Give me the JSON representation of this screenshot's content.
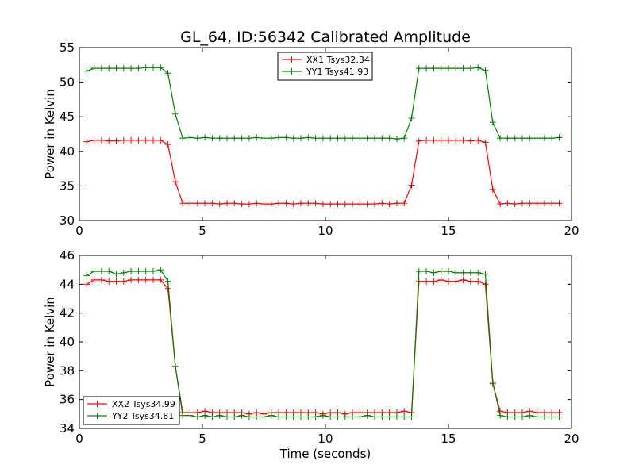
{
  "chart_data": [
    {
      "type": "line",
      "title": "GL_64, ID:56342 Calibrated Amplitude",
      "xlabel": "",
      "ylabel": "Power in Kelvin",
      "xlim": [
        0,
        20
      ],
      "ylim": [
        30,
        55
      ],
      "xticks": [
        0,
        5,
        10,
        15,
        20
      ],
      "yticks": [
        30,
        35,
        40,
        45,
        50,
        55
      ],
      "grid": false,
      "legend_position": "top-center",
      "x": [
        0.3,
        0.6,
        0.9,
        1.2,
        1.5,
        1.8,
        2.1,
        2.4,
        2.7,
        3.0,
        3.3,
        3.6,
        3.9,
        4.2,
        4.5,
        4.8,
        5.1,
        5.4,
        5.7,
        6.0,
        6.3,
        6.6,
        6.9,
        7.2,
        7.5,
        7.8,
        8.1,
        8.4,
        8.7,
        9.0,
        9.3,
        9.6,
        9.9,
        10.2,
        10.5,
        10.8,
        11.1,
        11.4,
        11.7,
        12.0,
        12.3,
        12.6,
        12.9,
        13.2,
        13.5,
        13.8,
        14.1,
        14.4,
        14.7,
        15.0,
        15.3,
        15.6,
        15.9,
        16.2,
        16.5,
        16.8,
        17.1,
        17.4,
        17.7,
        18.0,
        18.3,
        18.6,
        18.9,
        19.2,
        19.5
      ],
      "series": [
        {
          "name": "XX1 Tsys32.34",
          "color": "#ff0000",
          "values": [
            41.4,
            41.6,
            41.6,
            41.5,
            41.5,
            41.6,
            41.6,
            41.6,
            41.6,
            41.6,
            41.6,
            41.0,
            35.6,
            32.5,
            32.5,
            32.5,
            32.5,
            32.5,
            32.4,
            32.5,
            32.5,
            32.4,
            32.4,
            32.5,
            32.4,
            32.4,
            32.5,
            32.5,
            32.4,
            32.5,
            32.5,
            32.5,
            32.4,
            32.4,
            32.4,
            32.4,
            32.4,
            32.4,
            32.4,
            32.4,
            32.5,
            32.4,
            32.5,
            32.5,
            35.1,
            41.5,
            41.6,
            41.6,
            41.6,
            41.6,
            41.6,
            41.6,
            41.5,
            41.6,
            41.3,
            34.5,
            32.4,
            32.5,
            32.4,
            32.5,
            32.5,
            32.5,
            32.5,
            32.5,
            32.5
          ]
        },
        {
          "name": "YY1 Tsys41.93",
          "color": "#008000",
          "values": [
            51.6,
            52.0,
            52.0,
            52.0,
            52.0,
            52.0,
            52.0,
            52.0,
            52.1,
            52.1,
            52.1,
            51.3,
            45.4,
            41.9,
            42.0,
            41.9,
            42.0,
            41.9,
            41.9,
            41.9,
            41.9,
            41.9,
            41.9,
            42.0,
            41.9,
            41.9,
            42.0,
            42.0,
            41.9,
            41.9,
            42.0,
            41.9,
            41.9,
            41.9,
            41.9,
            41.9,
            41.9,
            41.9,
            41.9,
            41.9,
            41.9,
            41.9,
            41.8,
            41.9,
            44.8,
            52.0,
            52.0,
            52.0,
            52.0,
            52.0,
            52.0,
            52.0,
            52.0,
            52.1,
            51.7,
            44.2,
            41.9,
            41.9,
            41.9,
            41.9,
            41.9,
            41.9,
            41.9,
            41.9,
            42.0
          ]
        }
      ]
    },
    {
      "type": "line",
      "title": "",
      "xlabel": "Time (seconds)",
      "ylabel": "Power in Kelvin",
      "xlim": [
        0,
        20
      ],
      "ylim": [
        34,
        46
      ],
      "xticks": [
        0,
        5,
        10,
        15,
        20
      ],
      "yticks": [
        34,
        36,
        38,
        40,
        42,
        44,
        46
      ],
      "grid": false,
      "legend_position": "bottom-left",
      "x": [
        0.3,
        0.6,
        0.9,
        1.2,
        1.5,
        1.8,
        2.1,
        2.4,
        2.7,
        3.0,
        3.3,
        3.6,
        3.9,
        4.2,
        4.5,
        4.8,
        5.1,
        5.4,
        5.7,
        6.0,
        6.3,
        6.6,
        6.9,
        7.2,
        7.5,
        7.8,
        8.1,
        8.4,
        8.7,
        9.0,
        9.3,
        9.6,
        9.9,
        10.2,
        10.5,
        10.8,
        11.1,
        11.4,
        11.7,
        12.0,
        12.3,
        12.6,
        12.9,
        13.2,
        13.5,
        13.8,
        14.1,
        14.4,
        14.7,
        15.0,
        15.3,
        15.6,
        15.9,
        16.2,
        16.5,
        16.8,
        17.1,
        17.4,
        17.7,
        18.0,
        18.3,
        18.6,
        18.9,
        19.2,
        19.5
      ],
      "series": [
        {
          "name": "XX2 Tsys34.99",
          "color": "#ff0000",
          "values": [
            44.0,
            44.3,
            44.3,
            44.2,
            44.2,
            44.2,
            44.3,
            44.3,
            44.3,
            44.3,
            44.3,
            43.7,
            38.3,
            35.1,
            35.1,
            35.1,
            35.2,
            35.1,
            35.1,
            35.1,
            35.1,
            35.1,
            35.0,
            35.1,
            35.0,
            35.1,
            35.1,
            35.1,
            35.1,
            35.1,
            35.1,
            35.1,
            35.0,
            35.1,
            35.1,
            35.0,
            35.1,
            35.1,
            35.1,
            35.1,
            35.1,
            35.1,
            35.1,
            35.2,
            35.1,
            44.2,
            44.2,
            44.2,
            44.3,
            44.2,
            44.2,
            44.3,
            44.2,
            44.2,
            44.0,
            37.1,
            35.2,
            35.1,
            35.1,
            35.1,
            35.2,
            35.1,
            35.1,
            35.1,
            35.1
          ]
        },
        {
          "name": "YY2 Tsys34.81",
          "color": "#008000",
          "values": [
            44.6,
            44.9,
            44.9,
            44.9,
            44.7,
            44.8,
            44.9,
            44.9,
            44.9,
            44.9,
            45.0,
            44.2,
            38.3,
            34.9,
            34.9,
            34.8,
            34.9,
            34.8,
            34.9,
            34.8,
            34.8,
            34.9,
            34.8,
            34.8,
            34.8,
            34.9,
            34.8,
            34.8,
            34.8,
            34.8,
            34.8,
            34.8,
            34.9,
            34.8,
            34.8,
            34.8,
            34.8,
            34.8,
            34.9,
            34.8,
            34.8,
            34.8,
            34.8,
            34.8,
            34.8,
            44.9,
            44.9,
            44.8,
            44.9,
            44.9,
            44.8,
            44.8,
            44.8,
            44.8,
            44.7,
            37.2,
            34.9,
            34.8,
            34.8,
            34.8,
            34.9,
            34.8,
            34.8,
            34.8,
            34.8
          ]
        }
      ]
    }
  ]
}
